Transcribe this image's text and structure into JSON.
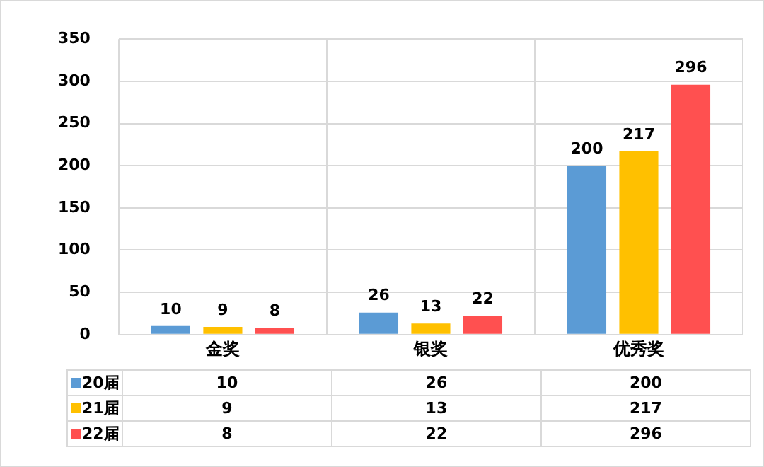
{
  "chart_data": {
    "type": "bar",
    "categories": [
      "金奖",
      "银奖",
      "优秀奖"
    ],
    "series": [
      {
        "name": "20届",
        "color": "#5b9bd5",
        "values": [
          10,
          26,
          200
        ]
      },
      {
        "name": "21届",
        "color": "#ffc000",
        "values": [
          9,
          13,
          217
        ]
      },
      {
        "name": "22届",
        "color": "#ff5050",
        "values": [
          8,
          22,
          296
        ]
      }
    ],
    "annotations": [
      "10",
      "26",
      "200",
      "9",
      "13",
      "217",
      "8",
      "22",
      "296"
    ],
    "ylim": [
      0,
      350
    ],
    "yticks": [
      0,
      50,
      100,
      150,
      200,
      250,
      300,
      350
    ],
    "grid": true,
    "legend": "bottom left",
    "data_labels": true
  }
}
